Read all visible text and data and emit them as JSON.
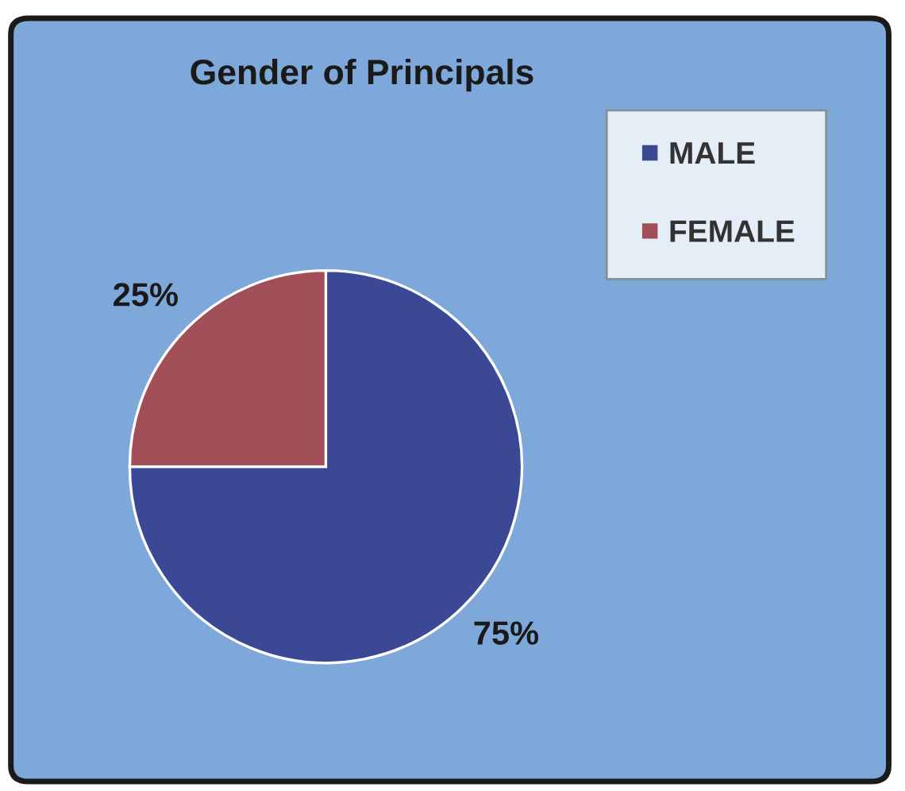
{
  "chart_data": {
    "type": "pie",
    "title": "Gender of Principals",
    "categories": [
      "MALE",
      "FEMALE"
    ],
    "values": [
      75,
      25
    ],
    "colors": [
      "#3b4896",
      "#a34f5a"
    ],
    "value_labels": [
      "75%",
      "25%"
    ],
    "legend": "top right"
  }
}
